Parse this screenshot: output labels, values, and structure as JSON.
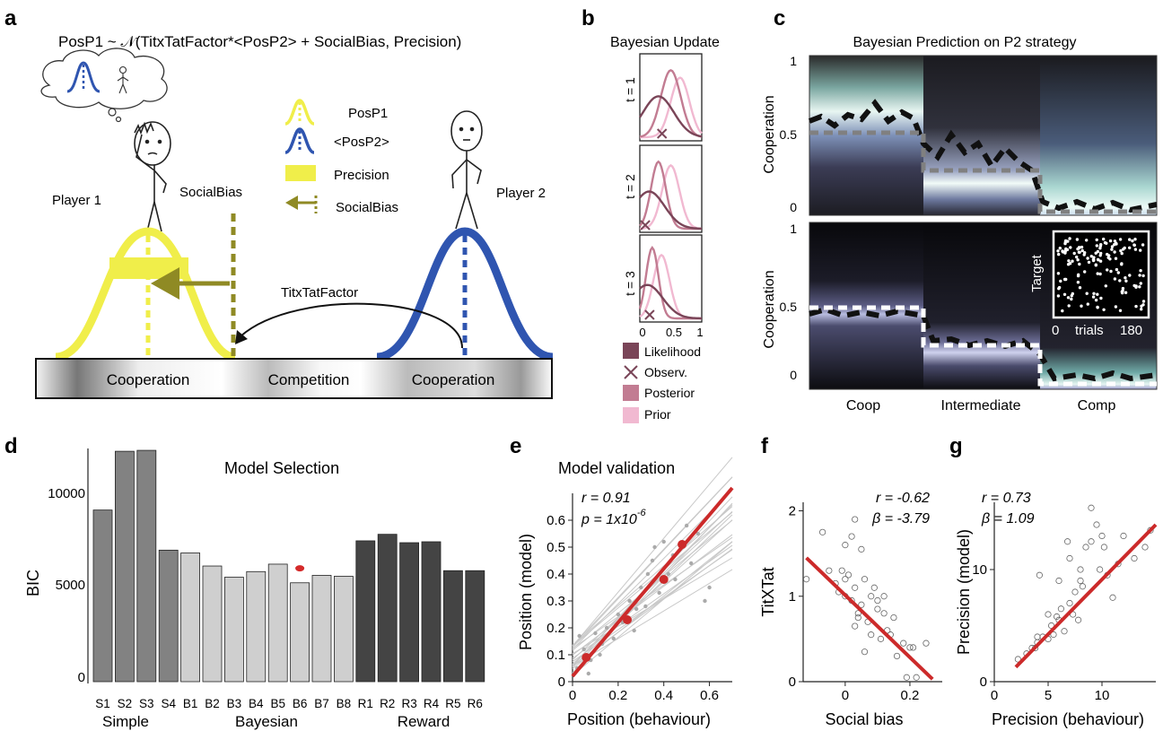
{
  "panel_letters": {
    "a": "a",
    "b": "b",
    "c": "c",
    "d": "d",
    "e": "e",
    "f": "f",
    "g": "g"
  },
  "panel_a": {
    "equation": "PosP1 ~ 𝒩(TitxTatFactor*<PosP2> + SocialBias, Precision)",
    "legend": {
      "posp1": "PosP1",
      "posp2": "<PosP2>",
      "precision": "Precision",
      "socialbias": "SocialBias"
    },
    "player1": "Player 1",
    "player2": "Player 2",
    "socialbias_label": "SocialBias",
    "titxtat_label": "TitxTatFactor",
    "axis_labels": [
      "Cooperation",
      "Competition",
      "Cooperation"
    ],
    "colors": {
      "yellow": "#f0ee4a",
      "blue": "#2f55b0",
      "olive": "#8f8a24"
    }
  },
  "panel_b": {
    "title": "Bayesian Update",
    "rows": [
      "t = 1",
      "t = 2",
      "t = 3"
    ],
    "x_ticks": [
      "0",
      "0.5",
      "1"
    ],
    "legend": [
      "Likelihood",
      "Observ.",
      "Posterior",
      "Prior"
    ],
    "colors": {
      "likelihood": "#7a4558",
      "posterior": "#c27c92",
      "prior": "#f1b9d1"
    }
  },
  "panel_c": {
    "title": "Bayesian Prediction on P2 strategy",
    "ylabel": "Cooperation",
    "top_yticks": [
      "1",
      "0.5",
      "0"
    ],
    "bottom_yticks": [
      "1",
      "0.5",
      "0"
    ],
    "x_labels": [
      "Coop",
      "Intermediate",
      "Comp"
    ],
    "inset": {
      "ylabel": "Target",
      "xstart": "0",
      "xlabel": "trials",
      "xend": "180"
    }
  },
  "panel_d": {
    "title": "Model Selection",
    "ylabel": "BIC",
    "y_ticks": [
      "10000",
      "5000",
      "0"
    ],
    "groups": [
      "Simple",
      "Bayesian",
      "Reward"
    ]
  },
  "panel_e": {
    "title": "Model validation",
    "stat_r": "r = 0.91",
    "stat_p": "p = 1x10",
    "stat_p_exp": "-6",
    "xlabel": "Position (behaviour)",
    "ylabel": "Position (model)",
    "x_ticks": [
      "0",
      "0.2",
      "0.4",
      "0.6"
    ],
    "y_ticks": [
      "0",
      "0.1",
      "0.2",
      "0.3",
      "0.4",
      "0.5",
      "0.6"
    ]
  },
  "panel_f": {
    "stat_r": "r = -0.62",
    "stat_b": "β = -3.79",
    "xlabel": "Social bias",
    "ylabel": "TitXTat",
    "x_ticks": [
      "0",
      "0.2"
    ],
    "y_ticks": [
      "2",
      "1",
      "0"
    ]
  },
  "panel_g": {
    "stat_r": "r = 0.73",
    "stat_b": "β = 1.09",
    "xlabel": "Precision (behaviour)",
    "ylabel": "Precision (model)",
    "x_ticks": [
      "0",
      "5",
      "10"
    ],
    "y_ticks": [
      "10",
      "0"
    ]
  },
  "chart_data": [
    {
      "type": "bar",
      "title": "Model Selection",
      "ylabel": "BIC",
      "ylim": [
        0,
        12500
      ],
      "categories": [
        "S1",
        "S2",
        "S3",
        "S4",
        "B1",
        "B2",
        "B3",
        "B4",
        "B5",
        "B6",
        "B7",
        "B8",
        "R1",
        "R2",
        "R3",
        "R4",
        "R5",
        "R6"
      ],
      "values": [
        9200,
        12350,
        12400,
        7050,
        6900,
        6200,
        5600,
        5900,
        6300,
        5300,
        5700,
        5650,
        7550,
        7900,
        7450,
        7500,
        5950,
        5950
      ],
      "bar_colors": [
        "#828282",
        "#828282",
        "#828282",
        "#828282",
        "#cfcfcf",
        "#cfcfcf",
        "#cfcfcf",
        "#cfcfcf",
        "#cfcfcf",
        "#cfcfcf",
        "#cfcfcf",
        "#cfcfcf",
        "#444444",
        "#444444",
        "#444444",
        "#444444",
        "#444444",
        "#444444"
      ],
      "best_model": "B6",
      "best_marker_value": 5500
    },
    {
      "type": "scatter",
      "title": "Model validation",
      "xlabel": "Position (behaviour)",
      "ylabel": "Position (model)",
      "xlim": [
        0,
        0.7
      ],
      "ylim": [
        0,
        0.7
      ],
      "fit": {
        "x": [
          0,
          0.7
        ],
        "y": [
          0.02,
          0.72
        ]
      },
      "group_means": {
        "x": [
          0.06,
          0.24,
          0.4,
          0.48
        ],
        "y": [
          0.09,
          0.23,
          0.38,
          0.51
        ]
      },
      "points": {
        "x": [
          0.02,
          0.05,
          0.08,
          0.1,
          0.12,
          0.15,
          0.18,
          0.2,
          0.22,
          0.25,
          0.27,
          0.3,
          0.32,
          0.35,
          0.38,
          0.4,
          0.42,
          0.45,
          0.5,
          0.55,
          0.58,
          0.03,
          0.07,
          0.13,
          0.28,
          0.33,
          0.44,
          0.52,
          0.6,
          0.36
        ],
        "y": [
          0.05,
          0.12,
          0.08,
          0.18,
          0.1,
          0.2,
          0.16,
          0.25,
          0.22,
          0.3,
          0.19,
          0.35,
          0.28,
          0.45,
          0.33,
          0.52,
          0.4,
          0.38,
          0.58,
          0.55,
          0.3,
          0.17,
          0.03,
          0.14,
          0.27,
          0.4,
          0.47,
          0.44,
          0.35,
          0.5
        ]
      }
    },
    {
      "type": "scatter",
      "xlabel": "Social bias",
      "ylabel": "TitXTat",
      "xlim": [
        -0.13,
        0.3
      ],
      "ylim": [
        0,
        2.1
      ],
      "fit": {
        "x": [
          -0.12,
          0.27
        ],
        "y": [
          1.45,
          0.03
        ]
      },
      "points": {
        "x": [
          -0.12,
          -0.07,
          -0.05,
          -0.03,
          -0.02,
          0.0,
          0.0,
          0.01,
          0.02,
          0.02,
          0.03,
          0.03,
          0.04,
          0.05,
          0.05,
          0.06,
          0.07,
          0.08,
          0.09,
          0.1,
          0.11,
          0.12,
          0.13,
          0.15,
          0.16,
          0.18,
          0.2,
          0.22,
          0.25,
          0.0,
          0.03,
          0.06,
          0.1,
          0.14,
          -0.01,
          0.04,
          0.08,
          0.12,
          0.19,
          0.21
        ],
        "y": [
          1.2,
          1.75,
          1.3,
          1.15,
          1.05,
          1.6,
          1.0,
          1.25,
          1.7,
          0.95,
          1.9,
          1.1,
          0.8,
          1.55,
          0.9,
          1.2,
          0.7,
          1.0,
          1.1,
          0.85,
          0.5,
          1.0,
          0.6,
          0.75,
          0.3,
          0.45,
          0.4,
          0.05,
          0.45,
          1.2,
          0.65,
          0.35,
          0.95,
          0.55,
          1.3,
          0.75,
          0.55,
          0.8,
          0.05,
          0.4
        ]
      }
    },
    {
      "type": "scatter",
      "xlabel": "Precision (behaviour)",
      "ylabel": "Precision (model)",
      "xlim": [
        0,
        15
      ],
      "ylim": [
        0,
        16
      ],
      "fit": {
        "x": [
          2,
          15
        ],
        "y": [
          1.3,
          14
        ]
      },
      "points": {
        "x": [
          2.2,
          3,
          3.5,
          4,
          4.2,
          4.5,
          5,
          5,
          5.3,
          5.5,
          6,
          6,
          6.2,
          6.5,
          7,
          7,
          7.3,
          7.5,
          8,
          8,
          8.5,
          9,
          9,
          9.5,
          10,
          10.5,
          11,
          11.5,
          12,
          13,
          14,
          14.5,
          4,
          5.8,
          6.8,
          8.2,
          9.8,
          3.8,
          7.8,
          10.2
        ],
        "y": [
          2,
          2.5,
          3,
          3.5,
          9.5,
          4,
          6,
          3.8,
          5,
          4.2,
          5.5,
          9,
          6.5,
          4.5,
          7,
          11,
          6,
          8,
          9,
          10,
          12,
          15.5,
          12.5,
          14,
          13,
          9.5,
          7.5,
          10.5,
          13,
          11,
          12,
          13.5,
          4,
          5.8,
          12.5,
          8.5,
          10,
          3,
          5.5,
          12
        ]
      }
    }
  ]
}
